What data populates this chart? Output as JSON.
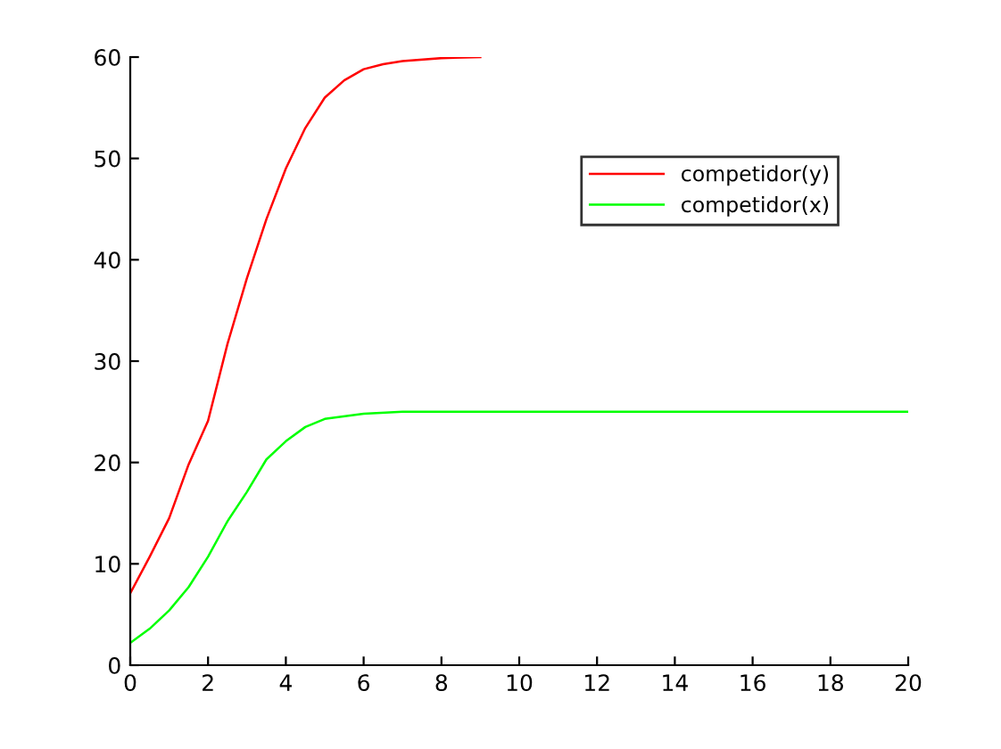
{
  "chart_data": {
    "type": "line",
    "series": [
      {
        "name": "competidor(y)",
        "color": "#ff0000",
        "x": [
          0,
          0.5,
          1,
          1.5,
          2,
          2.5,
          3,
          3.5,
          4,
          4.5,
          5,
          5.5,
          6,
          6.5,
          7,
          8,
          9
        ],
        "values": [
          7.1,
          10.7,
          14.5,
          19.8,
          24.1,
          31.7,
          38.2,
          44,
          49,
          53,
          56,
          57.7,
          58.8,
          59.3,
          59.6,
          59.9,
          60
        ]
      },
      {
        "name": "competidor(x)",
        "color": "#00ff00",
        "x": [
          0,
          0.5,
          1,
          1.5,
          2,
          2.5,
          3,
          3.5,
          4,
          4.5,
          5,
          6,
          7,
          8,
          10,
          15,
          20
        ],
        "values": [
          2.2,
          3.6,
          5.4,
          7.7,
          10.7,
          14.2,
          17.1,
          20.3,
          22.1,
          23.5,
          24.3,
          24.8,
          25,
          25,
          25,
          25,
          25
        ]
      }
    ],
    "xlim": [
      0,
      20
    ],
    "xticks": [
      0,
      2,
      4,
      6,
      8,
      10,
      12,
      14,
      16,
      18,
      20
    ],
    "ylim": [
      0,
      60
    ],
    "yticks": [
      0,
      10,
      20,
      30,
      40,
      50,
      60
    ],
    "legend": "top right",
    "grid": false
  }
}
